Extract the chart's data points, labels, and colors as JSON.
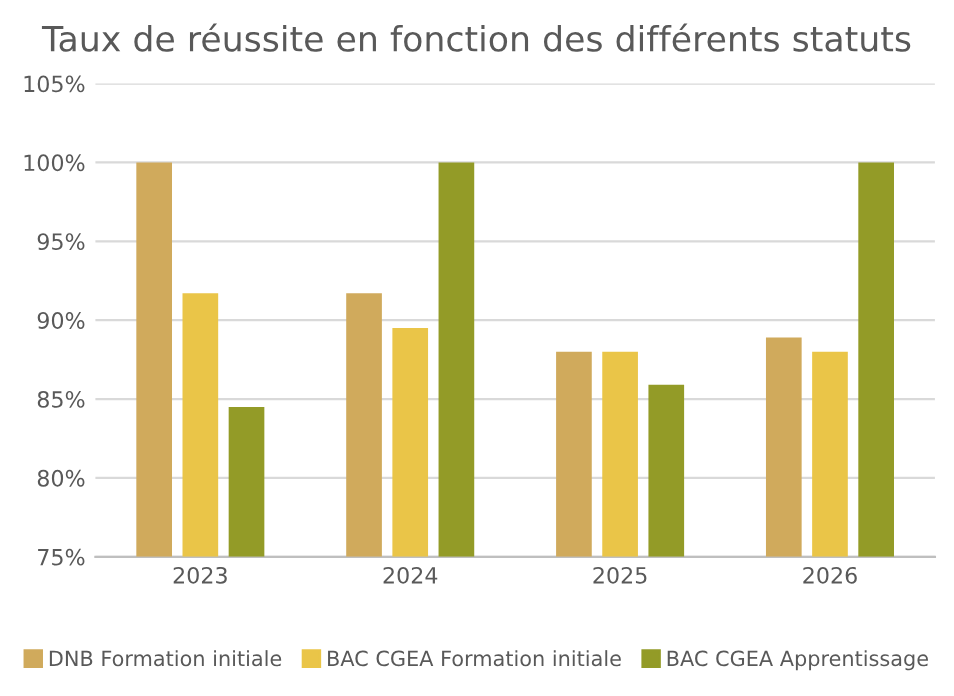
{
  "chart_data": {
    "type": "bar",
    "title": "Taux de réussite en fonction des différents statuts",
    "categories": [
      "2023",
      "2024",
      "2025",
      "2026"
    ],
    "series": [
      {
        "name": "DNB Formation initiale",
        "color": "#d0aa5c",
        "values": [
          100,
          91.7,
          88,
          88.9
        ]
      },
      {
        "name": "BAC CGEA Formation initiale",
        "color": "#eac548",
        "values": [
          91.7,
          89.5,
          88,
          88
        ]
      },
      {
        "name": "BAC CGEA Apprentissage",
        "color": "#939b27",
        "values": [
          84.5,
          100,
          85.9,
          100
        ]
      }
    ],
    "ylim": [
      75,
      105
    ],
    "yticks": [
      {
        "value": 75,
        "label": "75%"
      },
      {
        "value": 80,
        "label": "80%"
      },
      {
        "value": 85,
        "label": "85%"
      },
      {
        "value": 90,
        "label": "90%"
      },
      {
        "value": 95,
        "label": "95%"
      },
      {
        "value": 100,
        "label": "100%"
      },
      {
        "value": 105,
        "label": "105%"
      }
    ],
    "grid": "y",
    "legend": "bottom"
  }
}
